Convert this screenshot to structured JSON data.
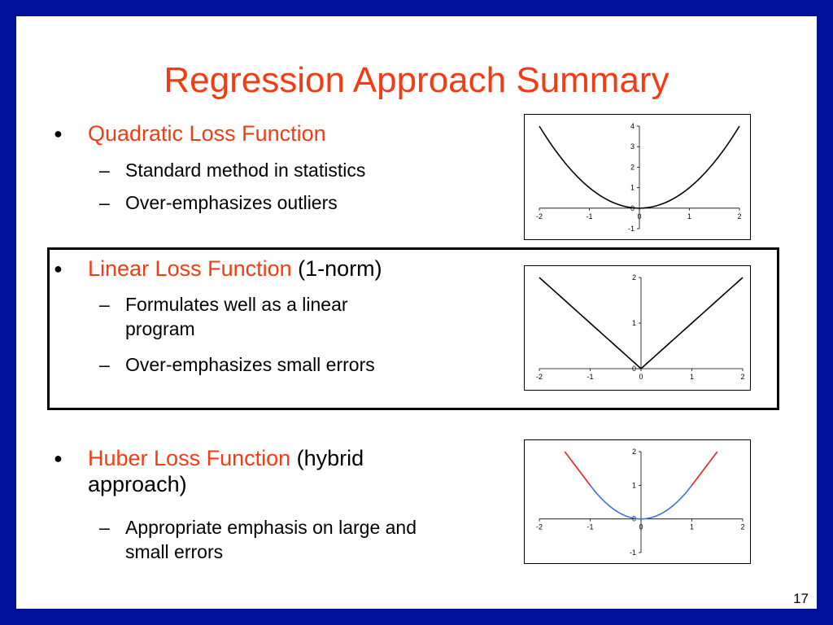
{
  "slide": {
    "title": "Regression Approach Summary",
    "page_number": "17"
  },
  "sections": [
    {
      "heading": "Quadratic Loss Function",
      "heading_suffix": "",
      "items": [
        "Standard method in statistics",
        "Over-emphasizes outliers"
      ]
    },
    {
      "heading": "Linear Loss Function",
      "heading_suffix": " (1-norm)",
      "items": [
        "Formulates well as a linear program",
        "Over-emphasizes small errors"
      ]
    },
    {
      "heading": "Huber Loss Function",
      "heading_suffix": " (hybrid approach)",
      "items": [
        "Appropriate emphasis on large and small errors"
      ]
    }
  ],
  "chart_data": [
    {
      "type": "line",
      "series": [
        {
          "function": "y = x^2",
          "x": [
            -2,
            -1,
            0,
            1,
            2
          ],
          "y": [
            4,
            1,
            0,
            1,
            4
          ],
          "color": "#000000"
        }
      ],
      "xlim": [
        -2,
        2
      ],
      "ylim": [
        -1,
        4
      ],
      "xticks": [
        "-2",
        "-1",
        "0",
        "1",
        "2"
      ],
      "yticks": [
        "-1",
        "0",
        "1",
        "2",
        "3",
        "4"
      ],
      "grid": false
    },
    {
      "type": "line",
      "series": [
        {
          "function": "y = |x|",
          "x": [
            -2,
            0,
            2
          ],
          "y": [
            2,
            0,
            2
          ],
          "color": "#000000"
        }
      ],
      "xlim": [
        -2,
        2
      ],
      "ylim": [
        0,
        2
      ],
      "xticks": [
        "-2",
        "-1",
        "0",
        "1",
        "2"
      ],
      "yticks": [
        "0",
        "1",
        "2"
      ],
      "grid": false
    },
    {
      "type": "line",
      "series": [
        {
          "function": "y = x^2 for |x| <= 1",
          "x": [
            -1,
            0,
            1
          ],
          "y": [
            1,
            0,
            1
          ],
          "color": "#3a6fe0"
        },
        {
          "function": "y = 2|x| - 1 for |x| > 1",
          "x": [
            -1.5,
            -1
          ],
          "y": [
            2,
            1
          ],
          "color": "#e02020"
        },
        {
          "function": "y = 2|x| - 1 for |x| > 1",
          "x": [
            1,
            1.5
          ],
          "y": [
            1,
            2
          ],
          "color": "#e02020"
        }
      ],
      "xlim": [
        -2,
        2
      ],
      "ylim": [
        -1,
        2
      ],
      "xticks": [
        "-2",
        "-1",
        "0",
        "1",
        "2"
      ],
      "yticks": [
        "-1",
        "0",
        "1",
        "2"
      ],
      "grid": false
    }
  ]
}
